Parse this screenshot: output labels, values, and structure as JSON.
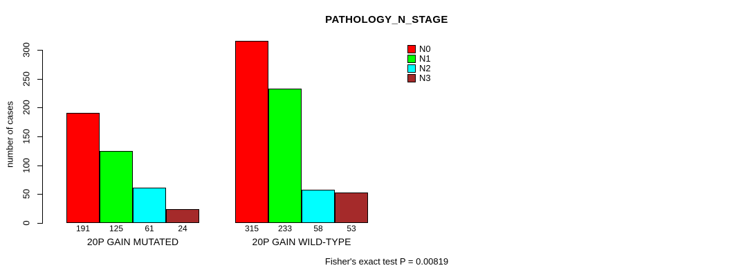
{
  "chart_data": {
    "type": "bar",
    "title": "PATHOLOGY_N_STAGE",
    "ylabel": "number of cases",
    "xlabel": "",
    "ylim": [
      0,
      300
    ],
    "yticks": [
      0,
      50,
      100,
      150,
      200,
      250,
      300
    ],
    "grid": false,
    "legend_position": "top-right",
    "legend_entries": [
      "N0",
      "N1",
      "N2",
      "N3"
    ],
    "categories": [
      "20P GAIN MUTATED",
      "20P GAIN WILD-TYPE"
    ],
    "series": [
      {
        "name": "N0",
        "color": "#FF0000",
        "values": [
          191,
          315
        ]
      },
      {
        "name": "N1",
        "color": "#00FF00",
        "values": [
          125,
          233
        ]
      },
      {
        "name": "N2",
        "color": "#00FFFF",
        "values": [
          61,
          58
        ]
      },
      {
        "name": "N3",
        "color": "#A52A2A",
        "values": [
          24,
          53
        ]
      }
    ],
    "bar_value_labels": [
      [
        "191",
        "125",
        "61",
        "24"
      ],
      [
        "315",
        "233",
        "58",
        "53"
      ]
    ],
    "annotation": "Fisher's exact test P = 0.00819"
  },
  "colors": {
    "background": "#FFFFFF",
    "text": "#000000",
    "axis": "#000000",
    "bar_border": "#000000"
  }
}
